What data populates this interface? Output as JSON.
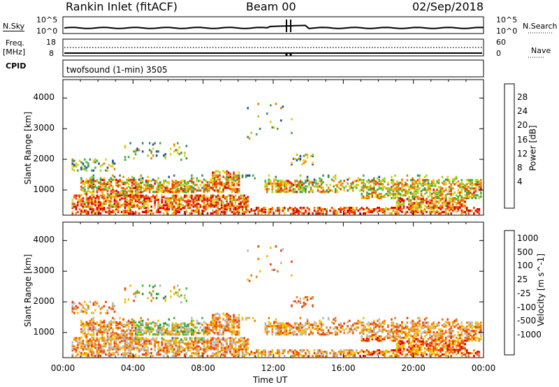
{
  "header": {
    "title_left": "Rankin Inlet (fitACF)",
    "title_center": "Beam 00",
    "title_right": "02/Sep/2018"
  },
  "top_panels": {
    "nsky_label": "N.Sky",
    "nsky_ticks": [
      "10^5",
      "10^0"
    ],
    "nsearch_label": "N.Search",
    "nsearch_ticks": [
      "10^5",
      "10^0"
    ],
    "freq_label": "Freq.",
    "freq_unit": "[MHz]",
    "freq_ticks": [
      "18",
      "8"
    ],
    "nave_label": "Nave",
    "nave_ticks": [
      "60",
      "0"
    ],
    "cpid_label": "CPID",
    "cpid_text": "twofsound (1-min) 3505"
  },
  "colors": {
    "power_scale": [
      "#1030e0",
      "#2050b0",
      "#3a8a5a",
      "#3fb040",
      "#a0d020",
      "#f5c800",
      "#f08000",
      "#f04000",
      "#e00000"
    ],
    "velocity_scale": [
      "#2030b0",
      "#1a6a90",
      "#2a8a50",
      "#40c040",
      "#b8b8b8",
      "#f0c000",
      "#f08000",
      "#f04000",
      "#e00000"
    ]
  },
  "chart_data": [
    {
      "type": "heatmap",
      "name": "power",
      "xlabel": "Time UT",
      "ylabel": "Slant Range [km]",
      "x_ticks": [
        "00:00",
        "04:00",
        "08:00",
        "12:00",
        "16:00",
        "20:00",
        "00:00"
      ],
      "y_ticks": [
        1000,
        2000,
        3000,
        4000
      ],
      "ylim": [
        180,
        4600
      ],
      "colorbar_label": "Power [dB]",
      "colorbar_ticks": [
        "28",
        "24",
        "20",
        "16",
        "12",
        "8",
        "4"
      ],
      "colorbar_range": [
        0,
        32
      ]
    },
    {
      "type": "heatmap",
      "name": "velocity",
      "xlabel": "Time UT",
      "ylabel": "Slant Range [km]",
      "x_ticks": [
        "00:00",
        "04:00",
        "08:00",
        "12:00",
        "16:00",
        "20:00",
        "00:00"
      ],
      "y_ticks": [
        1000,
        2000,
        3000,
        4000
      ],
      "ylim": [
        180,
        4600
      ],
      "colorbar_label": "Velocity [m s^-1]",
      "colorbar_ticks": [
        "1000",
        "500",
        "100",
        "25",
        "-25",
        "-100",
        "-500",
        "-1000"
      ]
    }
  ]
}
